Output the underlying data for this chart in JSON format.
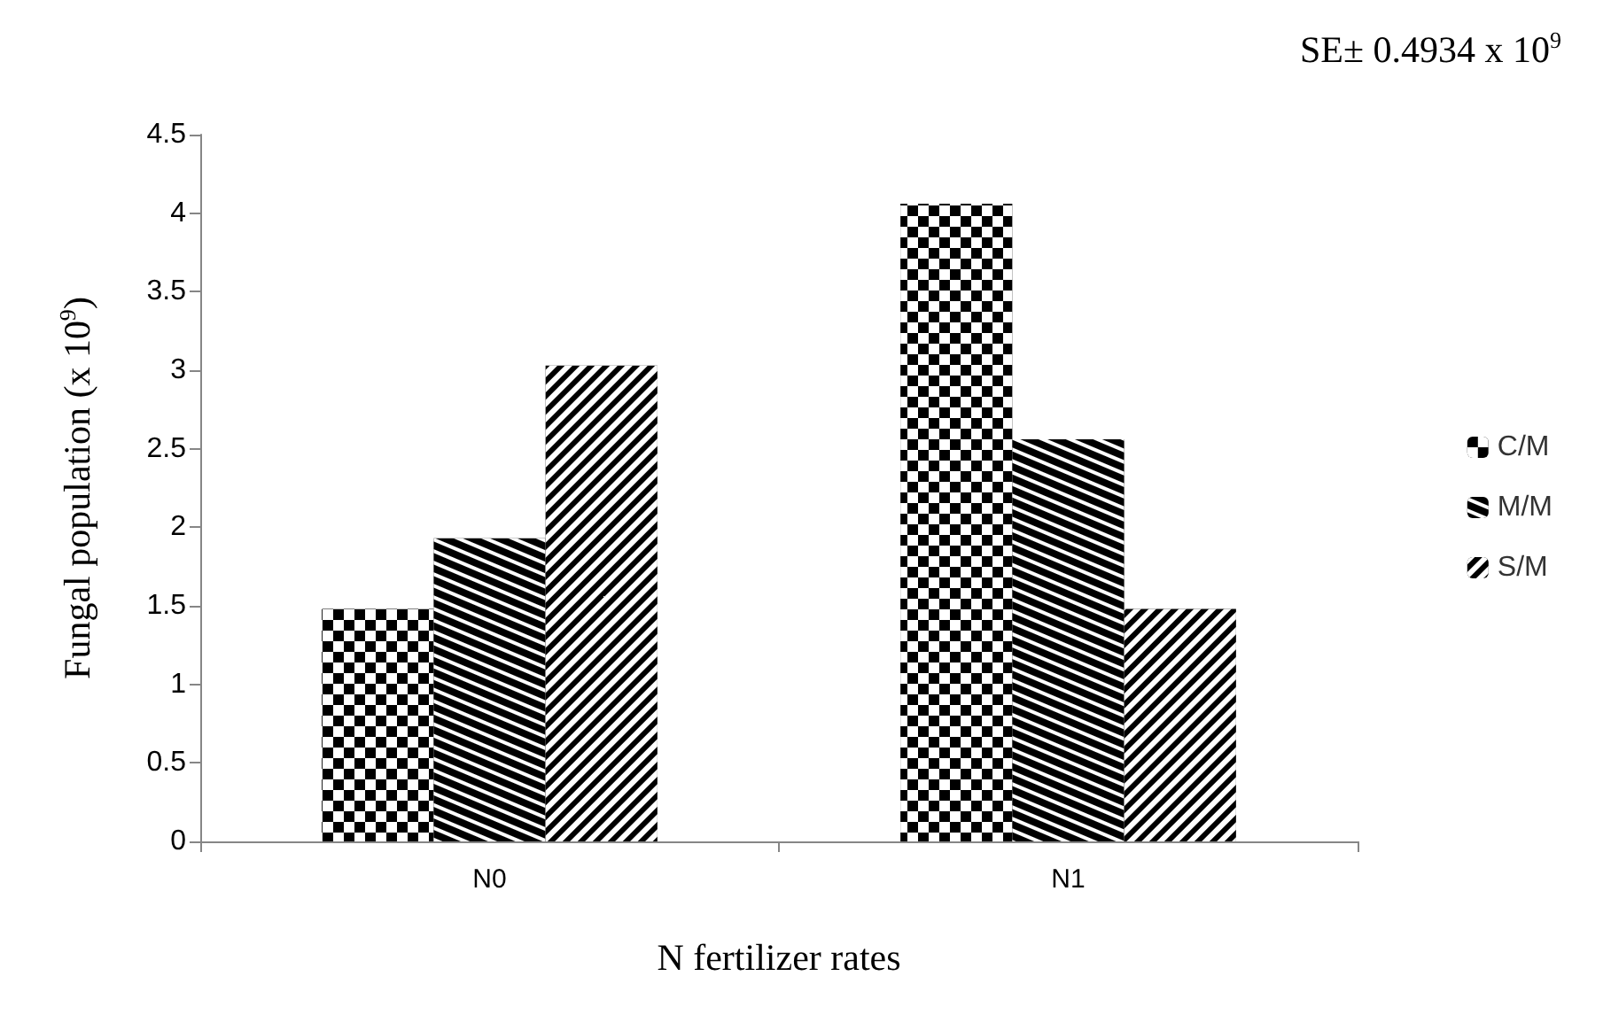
{
  "chart_data": {
    "type": "bar",
    "xlabel": "N fertilizer rates",
    "ylabel": "Fungal population (x 10$^{9}$)",
    "annotations": [
      "SE± 0.4934 x 10$^{9}$"
    ],
    "categories": [
      "N0",
      "N1"
    ],
    "series": [
      {
        "name": "C/M",
        "color": "#000000",
        "values": [
          1.48,
          4.06
        ]
      },
      {
        "name": "M/M",
        "color": "#000000",
        "values": [
          1.93,
          2.56
        ]
      },
      {
        "name": "S/M",
        "color": "#000000",
        "values": [
          3.03,
          1.48
        ]
      }
    ],
    "ylim": [
      0,
      4.5
    ],
    "yticks": [
      0,
      0.5,
      1,
      1.5,
      2,
      2.5,
      3,
      3.5,
      4,
      4.5
    ],
    "grid": false,
    "legend": "right"
  }
}
